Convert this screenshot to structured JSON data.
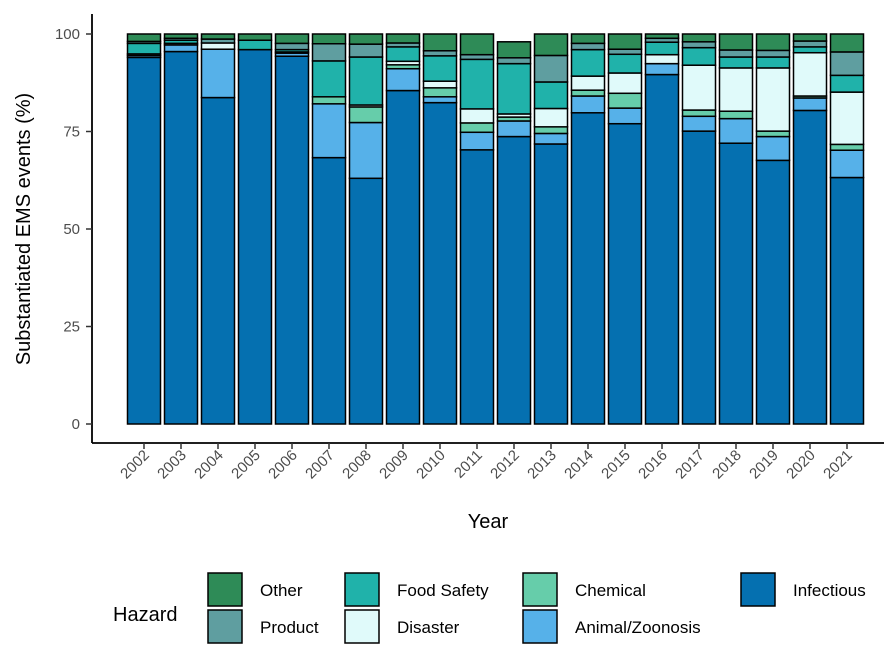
{
  "chart_data": {
    "type": "bar",
    "stacked": true,
    "xlabel": "Year",
    "ylabel": "Substantiated EMS events (%)",
    "ylim": [
      0,
      100
    ],
    "yticks": [
      0,
      25,
      50,
      75,
      100
    ],
    "grid": false,
    "legend_position": "bottom",
    "legend_title": "Hazard",
    "categories": [
      "2002",
      "2003",
      "2004",
      "2005",
      "2006",
      "2007",
      "2008",
      "2009",
      "2010",
      "2011",
      "2012",
      "2013",
      "2014",
      "2015",
      "2016",
      "2017",
      "2018",
      "2019",
      "2020",
      "2021"
    ],
    "series": [
      {
        "name": "Infectious",
        "color": "#0570B0",
        "values": [
          94,
          95.5,
          83.7,
          96,
          94.3,
          68.3,
          63,
          85.5,
          82.4,
          70.3,
          73.7,
          71.8,
          79.8,
          77,
          89.6,
          75.1,
          72,
          67.6,
          80.4,
          63.2
        ]
      },
      {
        "name": "Animal/Zoonosis",
        "color": "#56B1E9",
        "values": [
          0.5,
          1.7,
          12.4,
          0,
          0.8,
          13.8,
          14.3,
          5.6,
          1.5,
          4.5,
          4,
          2.7,
          4.3,
          4,
          2.8,
          3.8,
          6.3,
          6.1,
          3.2,
          7
        ]
      },
      {
        "name": "Chemical",
        "color": "#66CDAA",
        "values": [
          0.4,
          0,
          0,
          0,
          0.3,
          1.8,
          4,
          1,
          2.3,
          2.4,
          1,
          1.7,
          1.5,
          3.8,
          0,
          1.6,
          1.9,
          1.4,
          0.5,
          1.5
        ]
      },
      {
        "name": "Disaster",
        "color": "#E0FAFA",
        "values": [
          0,
          0.4,
          1.6,
          0,
          0,
          0,
          0.5,
          0.9,
          1.7,
          3.6,
          0.8,
          4.7,
          3.6,
          5.2,
          2.3,
          11.5,
          11.1,
          16.2,
          11.1,
          13.4
        ]
      },
      {
        "name": "Food Safety",
        "color": "#20B2AA",
        "values": [
          2.7,
          0.8,
          0,
          2.4,
          0.6,
          9.2,
          12.3,
          3.7,
          6.5,
          12.7,
          12.9,
          6.8,
          6.8,
          4.8,
          3.2,
          4.5,
          2.8,
          2.8,
          1.5,
          4.3
        ]
      },
      {
        "name": "Product",
        "color": "#5F9EA0",
        "values": [
          0.5,
          0.5,
          1,
          0,
          1.6,
          4.4,
          3.3,
          1,
          1.3,
          1.2,
          1.5,
          6.8,
          1.6,
          1.3,
          1,
          1.5,
          1.8,
          1.7,
          1.5,
          6
        ]
      },
      {
        "name": "Other",
        "color": "#2E8B57",
        "values": [
          1.9,
          1.1,
          1.3,
          1.6,
          2.4,
          2.5,
          2.6,
          2.3,
          4.3,
          5.3,
          4.1,
          5.5,
          2.4,
          3.9,
          1.1,
          2,
          4.1,
          4.2,
          1.8,
          4.6
        ]
      }
    ],
    "legend_order": [
      "Other",
      "Food Safety",
      "Chemical",
      "Infectious",
      "Product",
      "Disaster",
      "Animal/Zoonosis"
    ]
  }
}
